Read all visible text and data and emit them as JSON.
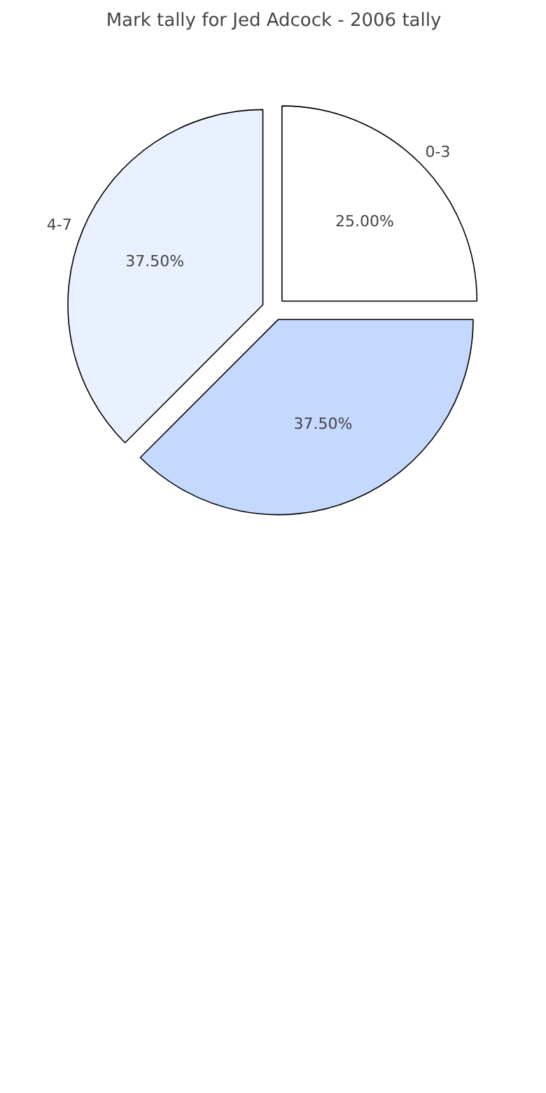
{
  "chart_data": {
    "type": "pie",
    "title": "Mark tally for Jed Adcock - 2006 tally",
    "categories": [
      "0-3",
      "4-7",
      null
    ],
    "values": [
      25,
      37.5,
      37.5
    ],
    "value_labels": [
      "25.00%",
      "37.50%",
      "37.50%"
    ],
    "colors": [
      "#ffffff",
      "#eaf1fe",
      "#c5d9ff"
    ],
    "legend": false
  }
}
